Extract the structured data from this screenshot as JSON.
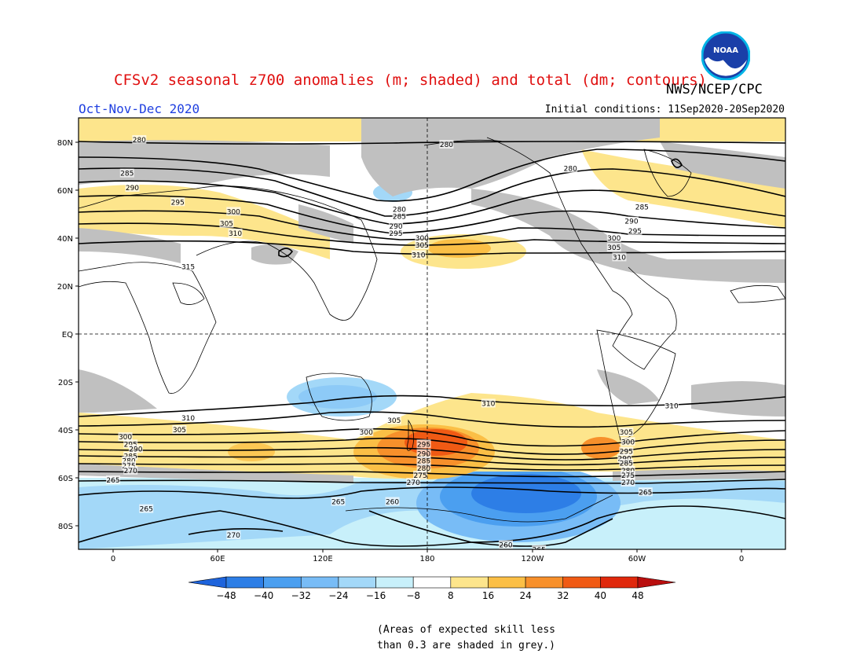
{
  "header": {
    "title": "CFSv2 seasonal z700 anomalies (m; shaded) and total (dm; contours)",
    "agency": "NWS/NCEP/CPC",
    "season": "Oct-Nov-Dec 2020",
    "initial_conditions": "Initial conditions: 11Sep2020-20Sep2020",
    "logo_text": "NOAA"
  },
  "map": {
    "lat_labels": [
      "80N",
      "60N",
      "40N",
      "20N",
      "EQ",
      "20S",
      "40S",
      "60S",
      "80S"
    ],
    "lon_labels": [
      "0",
      "60E",
      "120E",
      "180",
      "120W",
      "60W",
      "0"
    ],
    "contour_labels": [
      {
        "text": "280",
        "lon": 15,
        "lat": 81
      },
      {
        "text": "280",
        "lon": 191,
        "lat": 79
      },
      {
        "text": "280",
        "lon": 262,
        "lat": 69
      },
      {
        "text": "285",
        "lon": 8,
        "lat": 67
      },
      {
        "text": "290",
        "lon": 11,
        "lat": 61
      },
      {
        "text": "295",
        "lon": 37,
        "lat": 55
      },
      {
        "text": "300",
        "lon": 69,
        "lat": 51
      },
      {
        "text": "305",
        "lon": 65,
        "lat": 46
      },
      {
        "text": "310",
        "lon": 70,
        "lat": 42
      },
      {
        "text": "315",
        "lon": 43,
        "lat": 28
      },
      {
        "text": "280",
        "lon": 164,
        "lat": 52
      },
      {
        "text": "285",
        "lon": 164,
        "lat": 49
      },
      {
        "text": "290",
        "lon": 162,
        "lat": 45
      },
      {
        "text": "295",
        "lon": 162,
        "lat": 42
      },
      {
        "text": "300",
        "lon": 177,
        "lat": 40
      },
      {
        "text": "305",
        "lon": 177,
        "lat": 37
      },
      {
        "text": "310",
        "lon": 175,
        "lat": 33
      },
      {
        "text": "285",
        "lon": 303,
        "lat": 53
      },
      {
        "text": "290",
        "lon": 297,
        "lat": 47
      },
      {
        "text": "295",
        "lon": 299,
        "lat": 43
      },
      {
        "text": "300",
        "lon": 287,
        "lat": 40
      },
      {
        "text": "305",
        "lon": 287,
        "lat": 36
      },
      {
        "text": "310",
        "lon": 290,
        "lat": 32
      },
      {
        "text": "310",
        "lon": 43,
        "lat": -35
      },
      {
        "text": "305",
        "lon": 38,
        "lat": -40
      },
      {
        "text": "300",
        "lon": 7,
        "lat": -43
      },
      {
        "text": "295",
        "lon": 10,
        "lat": -46
      },
      {
        "text": "290",
        "lon": 13,
        "lat": -48
      },
      {
        "text": "285",
        "lon": 10,
        "lat": -51
      },
      {
        "text": "280",
        "lon": 9,
        "lat": -53
      },
      {
        "text": "275",
        "lon": 9,
        "lat": -55
      },
      {
        "text": "270",
        "lon": 10,
        "lat": -57
      },
      {
        "text": "265",
        "lon": 0,
        "lat": -61
      },
      {
        "text": "265",
        "lon": 19,
        "lat": -73
      },
      {
        "text": "270",
        "lon": 69,
        "lat": -84
      },
      {
        "text": "300",
        "lon": 145,
        "lat": -41
      },
      {
        "text": "305",
        "lon": 161,
        "lat": -36
      },
      {
        "text": "310",
        "lon": 215,
        "lat": -29
      },
      {
        "text": "295",
        "lon": 178,
        "lat": -46
      },
      {
        "text": "290",
        "lon": 178,
        "lat": -50
      },
      {
        "text": "285",
        "lon": 178,
        "lat": -53
      },
      {
        "text": "280",
        "lon": 178,
        "lat": -56
      },
      {
        "text": "275",
        "lon": 176,
        "lat": -59
      },
      {
        "text": "270",
        "lon": 172,
        "lat": -62
      },
      {
        "text": "265",
        "lon": 129,
        "lat": -70
      },
      {
        "text": "260",
        "lon": 160,
        "lat": -70
      },
      {
        "text": "260",
        "lon": 225,
        "lat": -88
      },
      {
        "text": "265",
        "lon": 244,
        "lat": -90
      },
      {
        "text": "305",
        "lon": 294,
        "lat": -41
      },
      {
        "text": "300",
        "lon": 295,
        "lat": -45
      },
      {
        "text": "295",
        "lon": 294,
        "lat": -49
      },
      {
        "text": "290",
        "lon": 293,
        "lat": -52
      },
      {
        "text": "285",
        "lon": 294,
        "lat": -54
      },
      {
        "text": "280",
        "lon": 295,
        "lat": -57
      },
      {
        "text": "275",
        "lon": 295,
        "lat": -59
      },
      {
        "text": "270",
        "lon": 295,
        "lat": -62
      },
      {
        "text": "265",
        "lon": 305,
        "lat": -66
      },
      {
        "text": "310",
        "lon": 320,
        "lat": -30
      }
    ]
  },
  "colorbar": {
    "labels": [
      "-48",
      "-40",
      "-32",
      "-24",
      "-16",
      "-8",
      "8",
      "16",
      "24",
      "32",
      "40",
      "48"
    ],
    "colors": [
      "#1e64dc",
      "#2d7ee6",
      "#4b9ff0",
      "#78bcf6",
      "#a3d8f8",
      "#c8f0fa",
      "#ffffff",
      "#fde58c",
      "#fbbf46",
      "#f7902b",
      "#f05a14",
      "#e0280c",
      "#b90e0e"
    ]
  },
  "note": {
    "line1": "(Areas of expected skill less",
    "line2": "than 0.3 are shaded in grey.)"
  }
}
